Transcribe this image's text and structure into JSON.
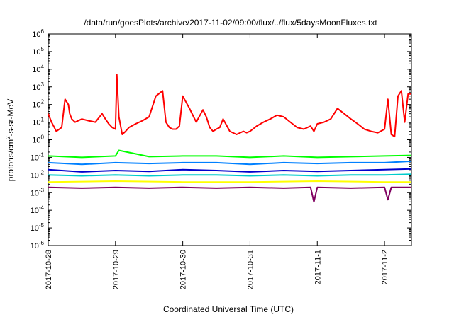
{
  "chart_data": {
    "type": "line",
    "title": "/data/run/goesPlots/archive/2017-11-02/09:00/flux/../flux/5daysMoonFluxes.txt",
    "xlabel": "Coordinated Universal Time (UTC)",
    "ylabel": {
      "base": "protons/cm",
      "sup": "2",
      "rest": "-s-sr-MeV"
    },
    "yscale": "log",
    "ylim_exp": [
      -6,
      6
    ],
    "ytick_base": "10",
    "ytick_exponents": [
      "6",
      "5",
      "4",
      "3",
      "2",
      "1",
      "0",
      "-1",
      "-2",
      "-3",
      "-4",
      "-5",
      "-6"
    ],
    "xlim_days": [
      0,
      5.4
    ],
    "xtick_labels": [
      "2017-10-28",
      "2017-10-29",
      "2017-10-30",
      "2017-10-31",
      "2017-11-1",
      "2017-11-2"
    ],
    "grid": false,
    "legend": "none",
    "series": [
      {
        "color": "#ff0000",
        "x": [
          0,
          0.05,
          0.12,
          0.2,
          0.25,
          0.3,
          0.32,
          0.35,
          0.4,
          0.5,
          0.6,
          0.7,
          0.8,
          0.85,
          0.9,
          0.95,
          1.0,
          1.02,
          1.05,
          1.1,
          1.15,
          1.2,
          1.3,
          1.4,
          1.5,
          1.6,
          1.7,
          1.75,
          1.8,
          1.85,
          1.9,
          1.95,
          2.0,
          2.1,
          2.2,
          2.3,
          2.35,
          2.4,
          2.45,
          2.5,
          2.55,
          2.6,
          2.7,
          2.8,
          2.9,
          2.95,
          3.0,
          3.1,
          3.2,
          3.3,
          3.4,
          3.5,
          3.6,
          3.7,
          3.8,
          3.9,
          3.95,
          4.0,
          4.1,
          4.2,
          4.3,
          4.4,
          4.5,
          4.6,
          4.7,
          4.8,
          4.9,
          5.0,
          5.05,
          5.1,
          5.15,
          5.2,
          5.25,
          5.3,
          5.35,
          5.4
        ],
        "y": [
          30,
          10,
          3,
          5,
          200,
          100,
          30,
          15,
          10,
          15,
          12,
          10,
          30,
          15,
          8,
          5,
          4,
          5000,
          20,
          2,
          3,
          5,
          8,
          12,
          20,
          300,
          600,
          10,
          5,
          4,
          4,
          6,
          300,
          60,
          10,
          50,
          20,
          5,
          3,
          4,
          5,
          15,
          3,
          2,
          3,
          2.5,
          3,
          6,
          10,
          15,
          25,
          20,
          10,
          5,
          4,
          6,
          3,
          8,
          10,
          15,
          60,
          30,
          15,
          8,
          4,
          3,
          2.5,
          4,
          200,
          2,
          1.5,
          300,
          600,
          10,
          400,
          400
        ]
      },
      {
        "color": "#00ff00",
        "x": [
          0,
          0.5,
          1.0,
          1.05,
          1.5,
          2.0,
          2.5,
          3.0,
          3.5,
          4.0,
          4.5,
          5.0,
          5.4
        ],
        "y": [
          0.12,
          0.1,
          0.12,
          0.25,
          0.11,
          0.12,
          0.12,
          0.1,
          0.12,
          0.1,
          0.11,
          0.12,
          0.13
        ]
      },
      {
        "color": "#0080ff",
        "x": [
          0,
          0.5,
          1.0,
          1.5,
          2.0,
          2.5,
          3.0,
          3.5,
          4.0,
          4.5,
          5.0,
          5.4
        ],
        "y": [
          0.05,
          0.04,
          0.05,
          0.045,
          0.05,
          0.05,
          0.04,
          0.05,
          0.045,
          0.05,
          0.05,
          0.06
        ]
      },
      {
        "color": "#0000cc",
        "x": [
          0,
          0.5,
          1.0,
          1.5,
          2.0,
          2.5,
          3.0,
          3.5,
          4.0,
          4.5,
          5.0,
          5.4
        ],
        "y": [
          0.02,
          0.015,
          0.018,
          0.016,
          0.02,
          0.018,
          0.015,
          0.018,
          0.016,
          0.018,
          0.02,
          0.022
        ]
      },
      {
        "color": "#00cccc",
        "x": [
          0,
          0.5,
          1.0,
          1.5,
          2.0,
          2.5,
          3.0,
          3.5,
          4.0,
          4.5,
          5.0,
          5.4
        ],
        "y": [
          0.01,
          0.009,
          0.01,
          0.009,
          0.01,
          0.01,
          0.009,
          0.01,
          0.009,
          0.01,
          0.01,
          0.011
        ]
      },
      {
        "color": "#ffff00",
        "x": [
          0,
          1.0,
          2.0,
          3.0,
          4.0,
          5.0,
          5.4
        ],
        "y": [
          0.004,
          0.0045,
          0.004,
          0.004,
          0.0045,
          0.004,
          0.004
        ]
      },
      {
        "color": "#800060",
        "x": [
          0,
          0.5,
          1.0,
          1.5,
          2.0,
          2.5,
          3.0,
          3.5,
          3.9,
          3.95,
          4.0,
          4.5,
          5.0,
          5.05,
          5.1,
          5.4
        ],
        "y": [
          0.002,
          0.0018,
          0.002,
          0.0018,
          0.002,
          0.0018,
          0.002,
          0.0018,
          0.002,
          0.0003,
          0.002,
          0.0018,
          0.002,
          0.0004,
          0.002,
          0.002
        ]
      }
    ]
  }
}
